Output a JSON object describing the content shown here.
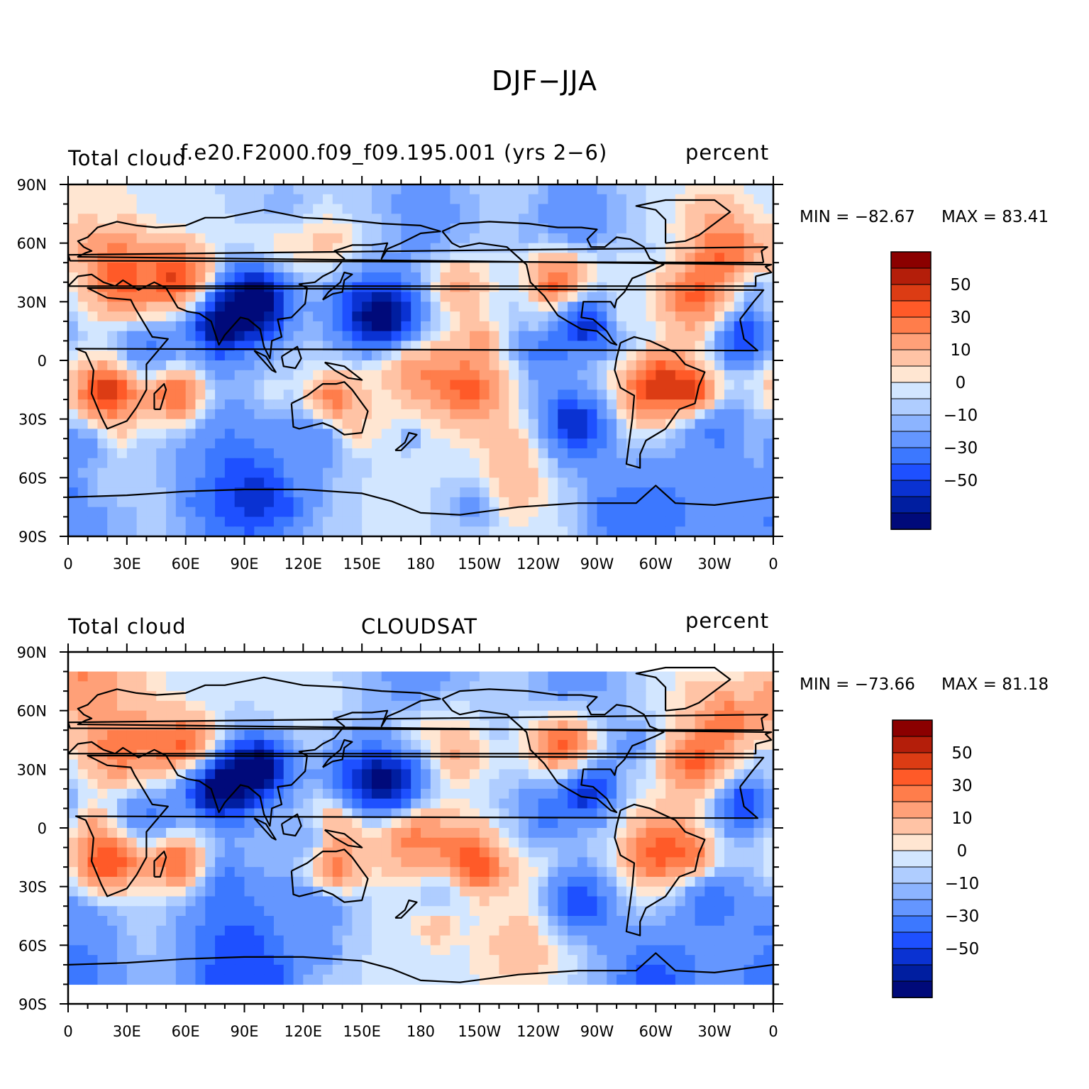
{
  "figure_title": "DJF−JJA",
  "chart_data": [
    {
      "type": "filled-contour-map",
      "variable": "Total cloud",
      "source": "f.e20.F2000.f09_f09.195.001 (yrs 2−6)",
      "units": "percent",
      "stats": {
        "min_label": "MIN = −82.67",
        "max_label": "MAX =  83.41",
        "min": -82.67,
        "max": 83.41
      },
      "lon_ticks": [
        "0",
        "30E",
        "60E",
        "90E",
        "120E",
        "150E",
        "180",
        "150W",
        "120W",
        "90W",
        "60W",
        "30W",
        "0"
      ],
      "lat_ticks": [
        "90N",
        "60N",
        "30N",
        "0",
        "30S",
        "60S",
        "90S"
      ],
      "colorbar_labels": [
        "50",
        "30",
        "10",
        "0",
        "−10",
        "−30",
        "−50"
      ],
      "colorbar_levels": [
        -60,
        -50,
        -40,
        -30,
        -20,
        -10,
        -5,
        0,
        5,
        10,
        20,
        30,
        40,
        50,
        60
      ],
      "colorbar_colors": [
        "#8b0000",
        "#b41e0a",
        "#dc3c14",
        "#ff5a28",
        "#ff7d4b",
        "#ffa078",
        "#ffc3a5",
        "#ffe6d2",
        "#d2e6ff",
        "#afcdff",
        "#8cb4ff",
        "#6496ff",
        "#3c78ff",
        "#1e50ff",
        "#0a32d2",
        "#001ea0",
        "#000a7a"
      ],
      "field_seed": 11
    },
    {
      "type": "filled-contour-map",
      "variable": "Total cloud",
      "source": "CLOUDSAT",
      "units": "percent",
      "stats": {
        "min_label": "MIN = −73.66",
        "max_label": "MAX =  81.18",
        "min": -73.66,
        "max": 81.18
      },
      "lon_ticks": [
        "0",
        "30E",
        "60E",
        "90E",
        "120E",
        "150E",
        "180",
        "150W",
        "120W",
        "90W",
        "60W",
        "30W",
        "0"
      ],
      "lat_ticks": [
        "90N",
        "60N",
        "30N",
        "0",
        "30S",
        "60S",
        "90S"
      ],
      "colorbar_labels": [
        "50",
        "30",
        "10",
        "0",
        "−10",
        "−30",
        "−50"
      ],
      "colorbar_levels": [
        -60,
        -50,
        -40,
        -30,
        -20,
        -10,
        -5,
        0,
        5,
        10,
        20,
        30,
        40,
        50,
        60
      ],
      "colorbar_colors": [
        "#8b0000",
        "#b41e0a",
        "#dc3c14",
        "#ff5a28",
        "#ff7d4b",
        "#ffa078",
        "#ffc3a5",
        "#ffe6d2",
        "#d2e6ff",
        "#afcdff",
        "#8cb4ff",
        "#6496ff",
        "#3c78ff",
        "#1e50ff",
        "#0a32d2",
        "#001ea0",
        "#000a7a"
      ],
      "field_seed": 47,
      "data_lat_range": [
        -82,
        82
      ]
    }
  ]
}
